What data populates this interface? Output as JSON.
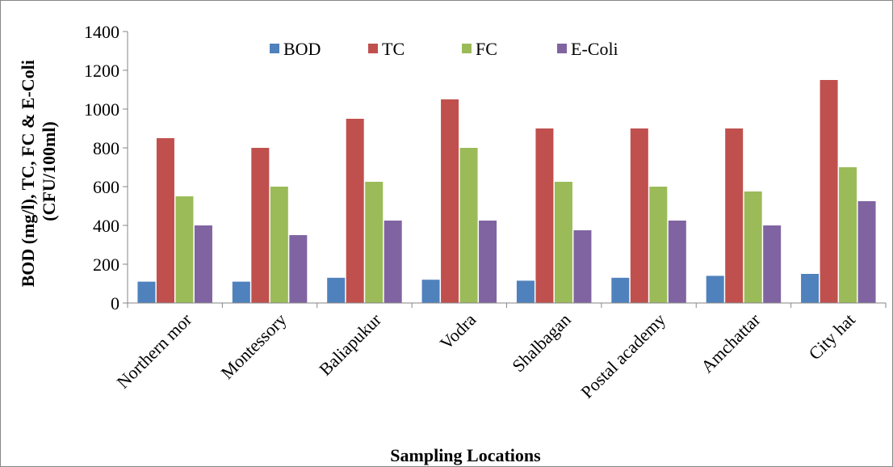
{
  "chart_data": {
    "type": "bar",
    "categories": [
      "Northern mor",
      "Montessory",
      "Baliapukur",
      "Vodra",
      "Shalbagan",
      "Postal academy",
      "Amchattar",
      "City hat"
    ],
    "series": [
      {
        "name": "BOD",
        "color": "#4f81bd",
        "values": [
          110,
          110,
          130,
          120,
          115,
          130,
          140,
          150
        ]
      },
      {
        "name": "TC",
        "color": "#c0504d",
        "values": [
          850,
          800,
          950,
          1050,
          900,
          900,
          900,
          1150
        ]
      },
      {
        "name": "FC",
        "color": "#9bbb59",
        "values": [
          550,
          600,
          625,
          800,
          625,
          600,
          575,
          700
        ]
      },
      {
        "name": "E-Coli",
        "color": "#8064a2",
        "values": [
          400,
          350,
          425,
          425,
          375,
          425,
          400,
          525
        ]
      }
    ],
    "xlabel": "Sampling Locations",
    "ylabel_line1": "BOD (mg/l), TC, FC & E-Coli",
    "ylabel_line2": "(CFU/100ml)",
    "ylim": [
      0,
      1400
    ],
    "yticks": [
      0,
      200,
      400,
      600,
      800,
      1000,
      1200,
      1400
    ],
    "grid": false,
    "legend_position": "top"
  }
}
